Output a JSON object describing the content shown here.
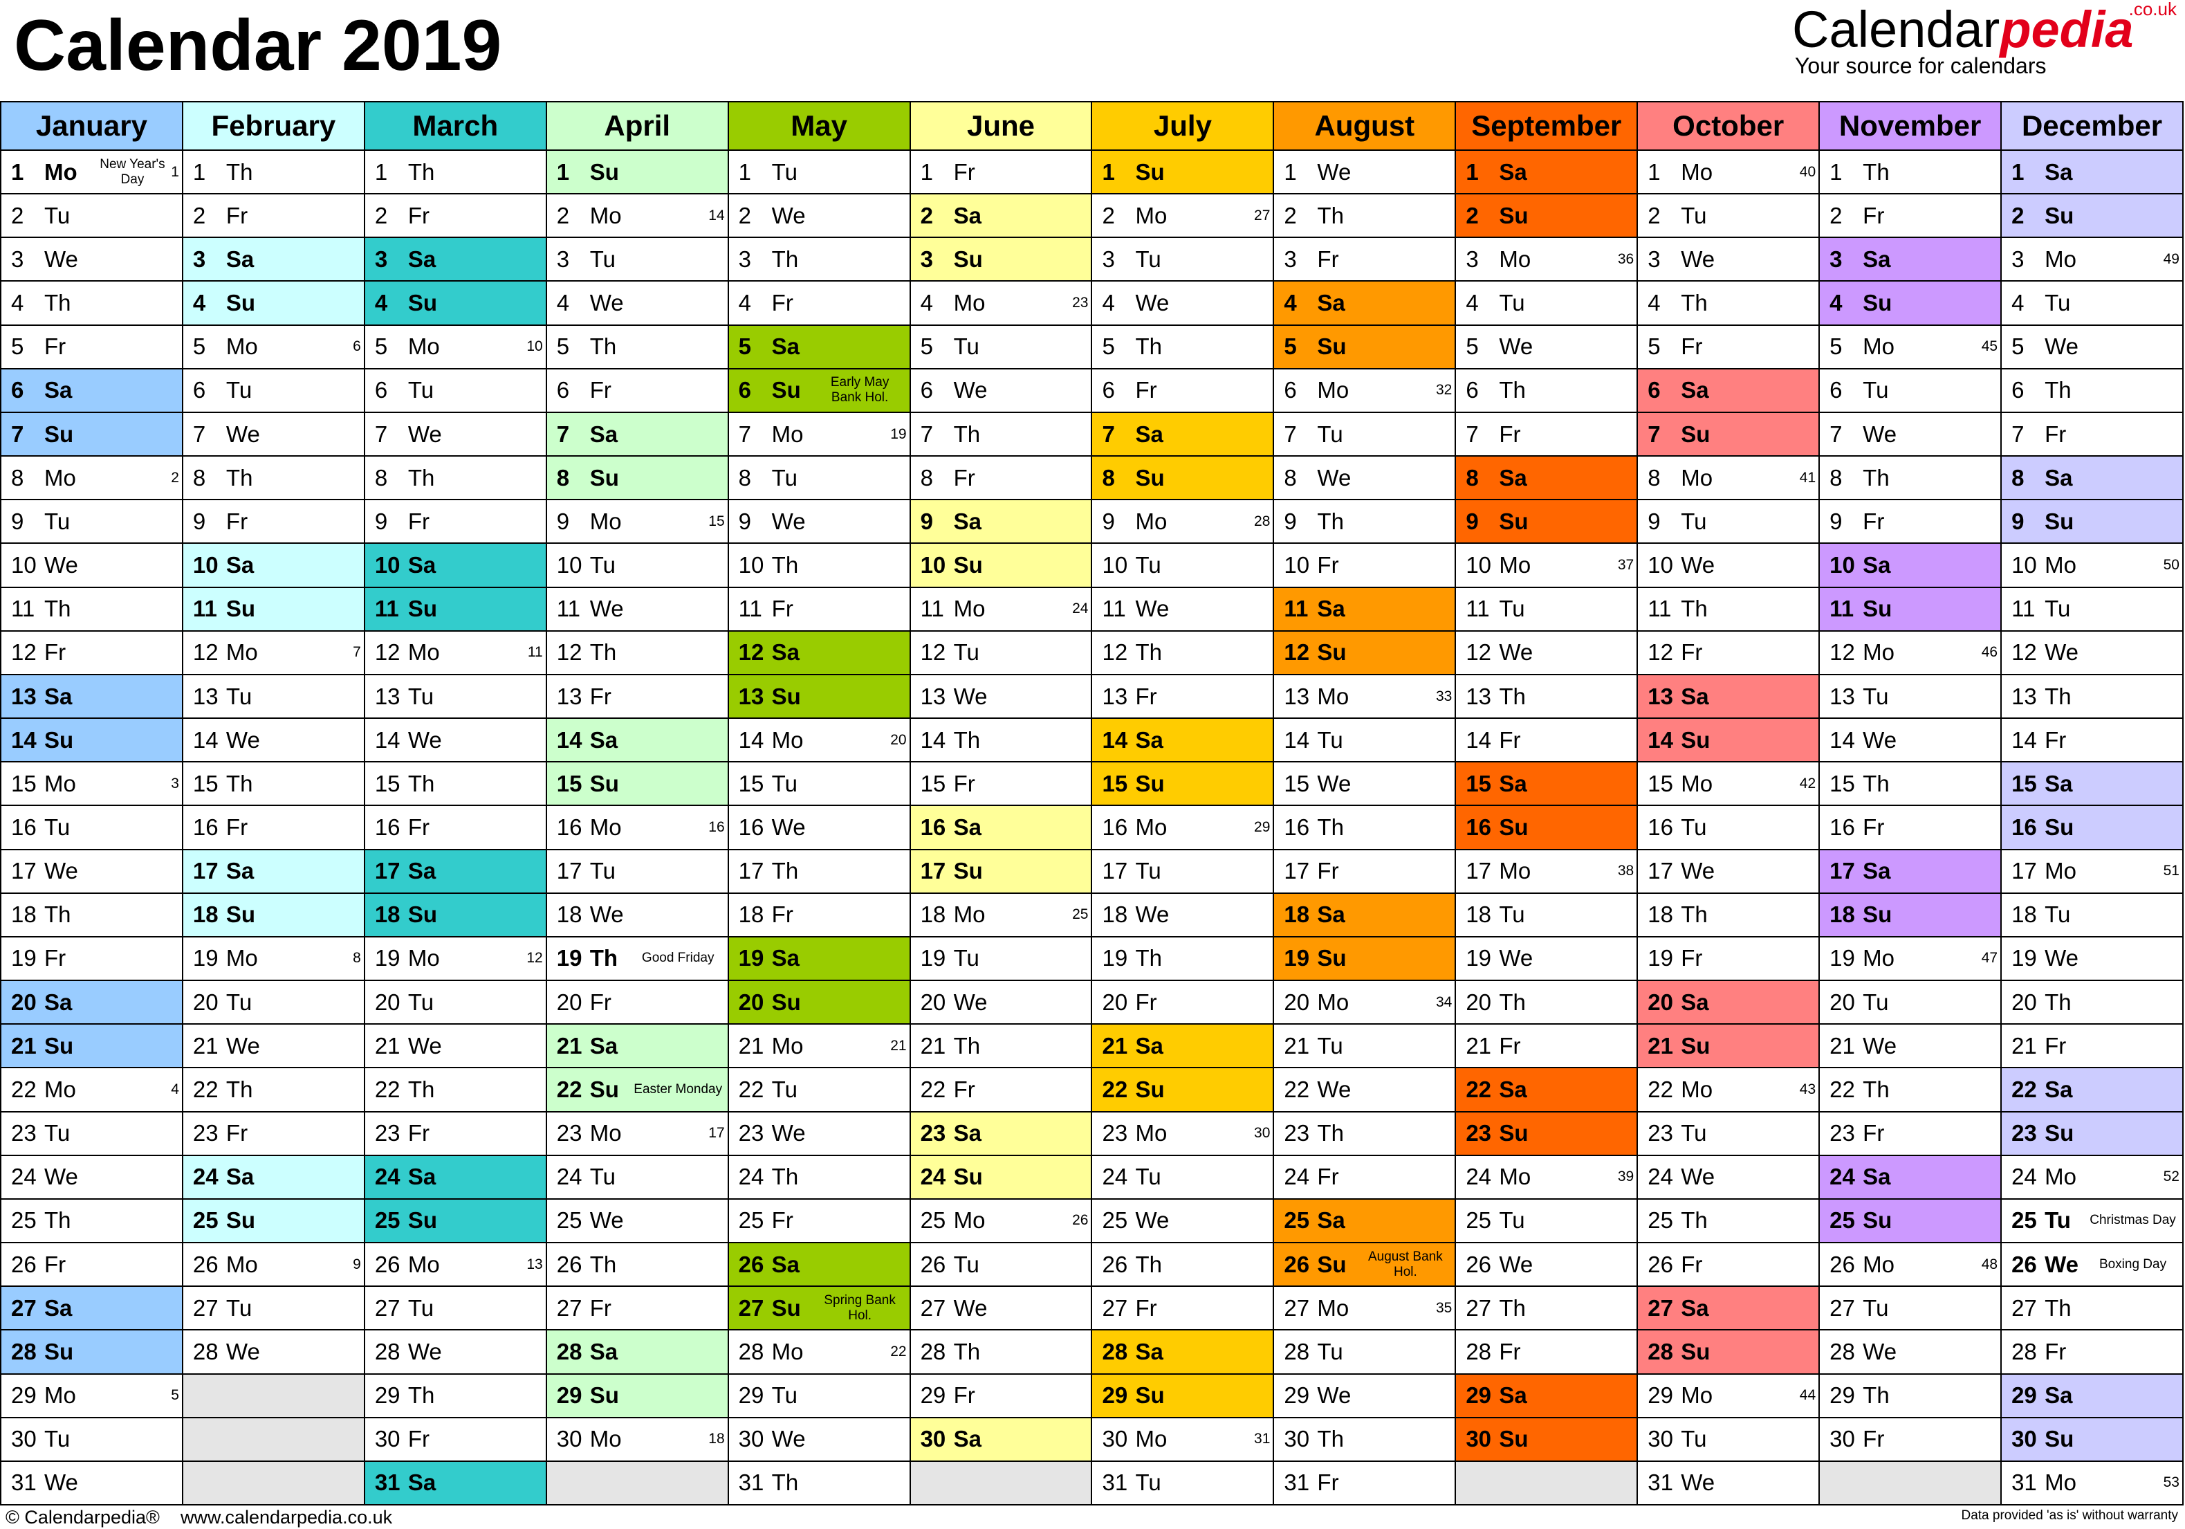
{
  "title": "Calendar 2019",
  "brand": {
    "name_main": "Calendar",
    "name_accent": "pedia",
    "domain_suffix": ".co.uk",
    "tagline": "Your source for calendars"
  },
  "footer": {
    "copyright": "© Calendarpedia®",
    "url": "www.calendarpedia.co.uk",
    "disclaimer": "Data provided 'as is' without warranty"
  },
  "year": 2019,
  "first_weekday_index": 1,
  "weekday_abbr": [
    "Su",
    "Mo",
    "Tu",
    "We",
    "Th",
    "Fr",
    "Sa"
  ],
  "colors": {
    "empty": "#e5e5e5",
    "plain": "#ffffff"
  },
  "months": [
    {
      "name": "January",
      "days": 31,
      "header_color": "#99ccff",
      "weekend_color": "#99ccff"
    },
    {
      "name": "February",
      "days": 28,
      "header_color": "#ccffff",
      "weekend_color": "#ccffff"
    },
    {
      "name": "March",
      "days": 31,
      "header_color": "#33cccc",
      "weekend_color": "#33cccc"
    },
    {
      "name": "April",
      "days": 30,
      "header_color": "#ccffcc",
      "weekend_color": "#ccffcc"
    },
    {
      "name": "May",
      "days": 31,
      "header_color": "#99cc00",
      "weekend_color": "#99cc00"
    },
    {
      "name": "June",
      "days": 30,
      "header_color": "#ffff99",
      "weekend_color": "#ffff99"
    },
    {
      "name": "July",
      "days": 31,
      "header_color": "#ffcc00",
      "weekend_color": "#ffcc00"
    },
    {
      "name": "August",
      "days": 31,
      "header_color": "#ff9900",
      "weekend_color": "#ff9900"
    },
    {
      "name": "September",
      "days": 30,
      "header_color": "#ff6600",
      "weekend_color": "#ff6600"
    },
    {
      "name": "October",
      "days": 31,
      "header_color": "#ff8080",
      "weekend_color": "#ff8080"
    },
    {
      "name": "November",
      "days": 30,
      "header_color": "#cc99ff",
      "weekend_color": "#cc99ff"
    },
    {
      "name": "December",
      "days": 31,
      "header_color": "#ccccff",
      "weekend_color": "#ccccff"
    }
  ],
  "holidays": [
    {
      "month": 1,
      "day": 1,
      "text": "New Year's Day"
    },
    {
      "month": 4,
      "day": 19,
      "text": "Good Friday"
    },
    {
      "month": 4,
      "day": 22,
      "text": "Easter Monday"
    },
    {
      "month": 5,
      "day": 6,
      "text": "Early May Bank Hol."
    },
    {
      "month": 5,
      "day": 27,
      "text": "Spring Bank Hol."
    },
    {
      "month": 8,
      "day": 26,
      "text": "August Bank Hol."
    },
    {
      "month": 12,
      "day": 25,
      "text": "Christmas Day"
    },
    {
      "month": 12,
      "day": 26,
      "text": "Boxing Day"
    }
  ]
}
